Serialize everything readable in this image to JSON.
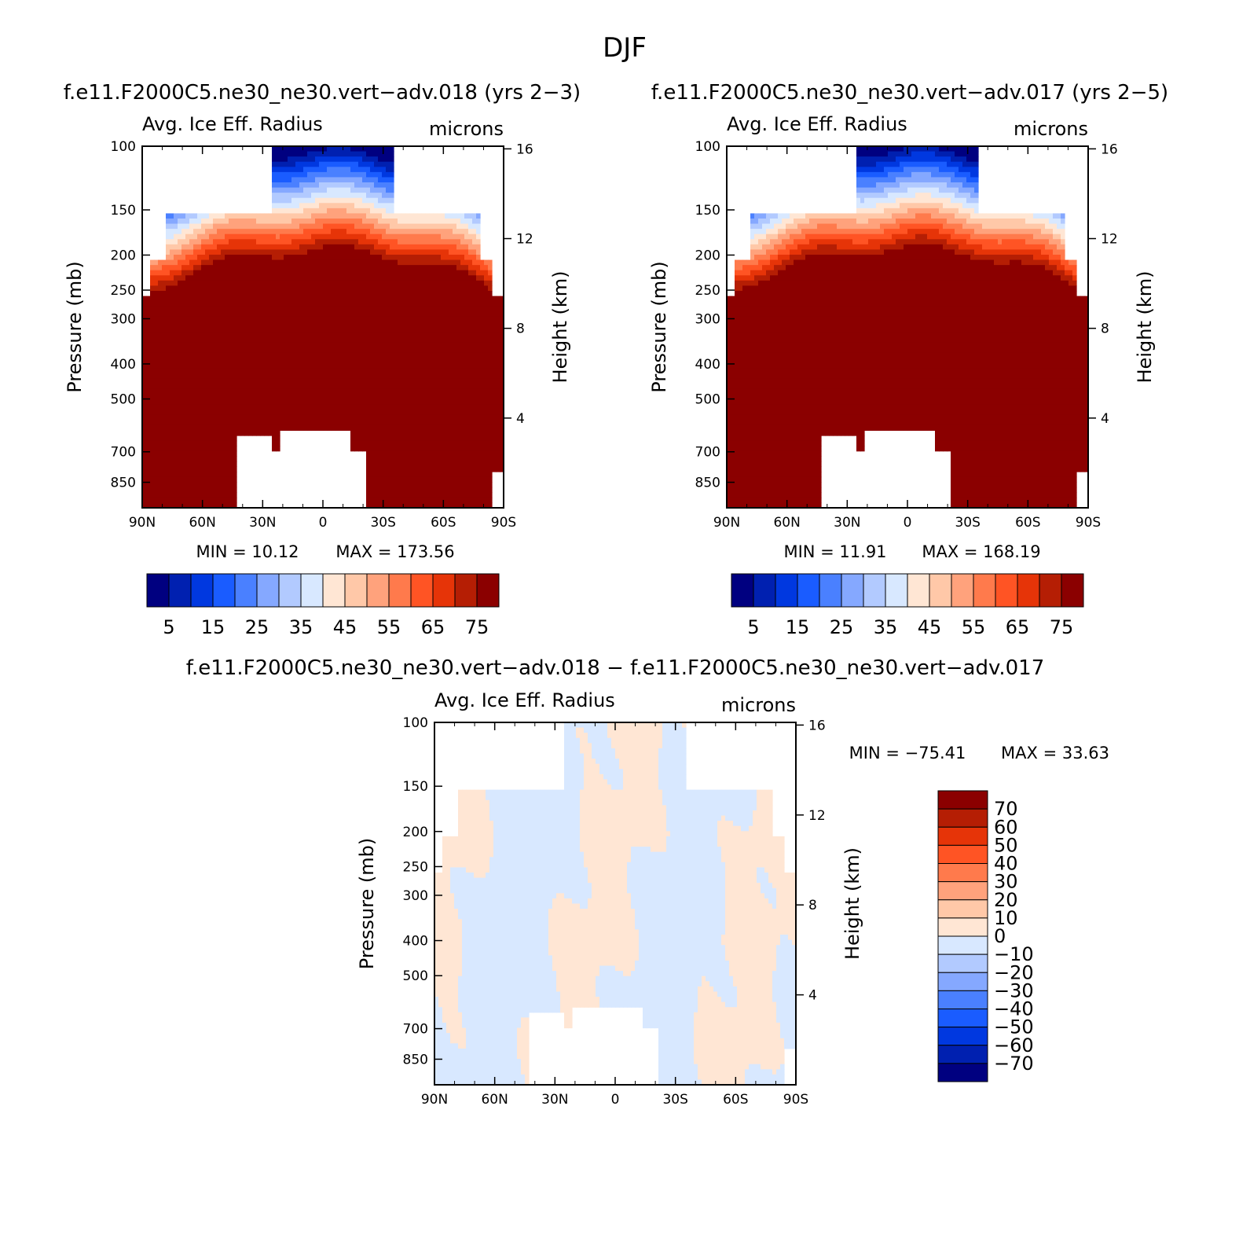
{
  "figure": {
    "title": "DJF"
  },
  "chart_data": [
    {
      "type": "heatmap",
      "title": "f.e11.F2000C5.ne30_ne30.vert-adv.018 (yrs 2-3)",
      "left_label": "Avg. Ice Eff. Radius",
      "right_label": "microns",
      "ylabel": "Pressure (mb)",
      "ylabel_right": "Height (km)",
      "xticks": [
        "90N",
        "60N",
        "30N",
        "0",
        "30S",
        "60S",
        "90S"
      ],
      "yticks": [
        "100",
        "150",
        "200",
        "250",
        "300",
        "400",
        "500",
        "700",
        "850"
      ],
      "yticks_right": [
        "16",
        "12",
        "8",
        "4"
      ],
      "stats": {
        "min_label": "MIN =",
        "min": "10.12",
        "max_label": "MAX =",
        "max": "173.56"
      },
      "colorbar": {
        "labels": [
          "5",
          "15",
          "25",
          "35",
          "45",
          "55",
          "65",
          "75"
        ]
      },
      "x_range": [
        "90N",
        "90S"
      ],
      "y_range_mb": [
        1000,
        100
      ],
      "y_scale": "log"
    },
    {
      "type": "heatmap",
      "title": "f.e11.F2000C5.ne30_ne30.vert-adv.017 (yrs 2-5)",
      "left_label": "Avg. Ice Eff. Radius",
      "right_label": "microns",
      "ylabel": "Pressure (mb)",
      "ylabel_right": "Height (km)",
      "xticks": [
        "90N",
        "60N",
        "30N",
        "0",
        "30S",
        "60S",
        "90S"
      ],
      "yticks": [
        "100",
        "150",
        "200",
        "250",
        "300",
        "400",
        "500",
        "700",
        "850"
      ],
      "yticks_right": [
        "16",
        "12",
        "8",
        "4"
      ],
      "stats": {
        "min_label": "MIN =",
        "min": "11.91",
        "max_label": "MAX =",
        "max": "168.19"
      },
      "colorbar": {
        "labels": [
          "5",
          "15",
          "25",
          "35",
          "45",
          "55",
          "65",
          "75"
        ]
      },
      "x_range": [
        "90N",
        "90S"
      ],
      "y_range_mb": [
        1000,
        100
      ],
      "y_scale": "log"
    },
    {
      "type": "heatmap",
      "title": "f.e11.F2000C5.ne30_ne30.vert-adv.018 - f.e11.F2000C5.ne30_ne30.vert-adv.017",
      "left_label": "Avg. Ice Eff. Radius",
      "right_label": "microns",
      "ylabel": "Pressure (mb)",
      "ylabel_right": "Height (km)",
      "xticks": [
        "90N",
        "60N",
        "30N",
        "0",
        "30S",
        "60S",
        "90S"
      ],
      "yticks": [
        "100",
        "150",
        "200",
        "250",
        "300",
        "400",
        "500",
        "700",
        "850"
      ],
      "yticks_right": [
        "16",
        "12",
        "8",
        "4"
      ],
      "stats": {
        "min_label": "MIN =",
        "min": "-75.41",
        "max_label": "MAX =",
        "max": "33.63"
      },
      "colorbar": {
        "labels": [
          "70",
          "60",
          "50",
          "40",
          "30",
          "20",
          "10",
          "0",
          "-10",
          "-20",
          "-30",
          "-40",
          "-50",
          "-60",
          "-70"
        ]
      },
      "x_range": [
        "90N",
        "90S"
      ],
      "y_range_mb": [
        1000,
        100
      ],
      "y_scale": "log"
    }
  ],
  "colors": {
    "seq16": [
      "#000080",
      "#0020b0",
      "#0038e0",
      "#1a5cff",
      "#4a80ff",
      "#85a8ff",
      "#b2caff",
      "#d8e8ff",
      "#ffe6d4",
      "#ffc8a8",
      "#ffa27c",
      "#ff7a4c",
      "#ff5424",
      "#e63408",
      "#b51e04",
      "#8b0000"
    ],
    "div16": [
      "#8b0000",
      "#b51e04",
      "#e63408",
      "#ff5424",
      "#ff7a4c",
      "#ffa27c",
      "#ffc8a8",
      "#ffe6d4",
      "#d8e8ff",
      "#b2caff",
      "#85a8ff",
      "#4a80ff",
      "#1a5cff",
      "#0038e0",
      "#0020b0",
      "#000080"
    ]
  }
}
